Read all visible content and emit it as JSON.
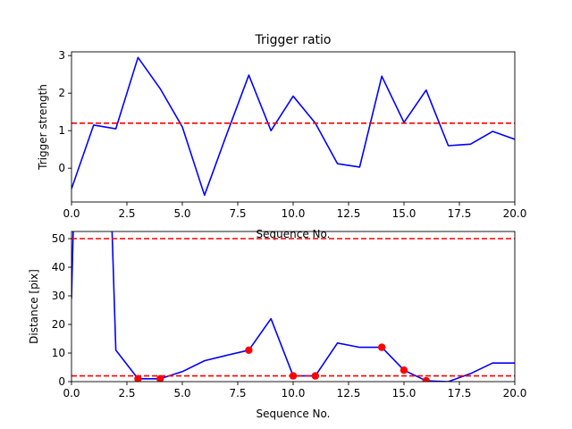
{
  "chart_data": [
    {
      "type": "line",
      "title": "Trigger ratio",
      "xlabel": "Sequence No.",
      "ylabel": "Trigger strength",
      "xlim": [
        0,
        20
      ],
      "ylim": [
        -0.9,
        3.1
      ],
      "xticks": [
        0,
        2.5,
        5,
        7.5,
        10,
        12.5,
        15,
        17.5,
        20
      ],
      "xtick_labels": [
        "0.0",
        "2.5",
        "5.0",
        "7.5",
        "10.0",
        "12.5",
        "15.0",
        "17.5",
        "20.0"
      ],
      "yticks": [
        0,
        1,
        2,
        3
      ],
      "ytick_labels": [
        "0",
        "1",
        "2",
        "3"
      ],
      "series": [
        {
          "color": "#0000ff",
          "x": [
            0,
            1,
            2,
            3,
            4,
            5,
            6,
            7,
            8,
            9,
            10,
            11,
            12,
            13,
            14,
            15,
            16,
            17,
            18,
            19,
            20
          ],
          "y": [
            -0.55,
            1.15,
            1.05,
            2.95,
            2.12,
            1.1,
            -0.72,
            0.9,
            2.48,
            1.0,
            1.92,
            1.2,
            0.12,
            0.03,
            2.45,
            1.22,
            2.08,
            0.6,
            0.64,
            0.98,
            0.77
          ]
        }
      ],
      "hlines": [
        {
          "y": 1.2,
          "color": "#ff0000",
          "style": "dashed"
        }
      ]
    },
    {
      "type": "line",
      "title": "",
      "xlabel": "Sequence No.",
      "ylabel": "Distance [pix]",
      "xlim": [
        0,
        20
      ],
      "ylim": [
        0,
        52.5
      ],
      "xticks": [
        0,
        2.5,
        5,
        7.5,
        10,
        12.5,
        15,
        17.5,
        20
      ],
      "xtick_labels": [
        "0.0",
        "2.5",
        "5.0",
        "7.5",
        "10.0",
        "12.5",
        "15.0",
        "17.5",
        "20.0"
      ],
      "yticks": [
        0,
        10,
        20,
        30,
        40,
        50
      ],
      "ytick_labels": [
        "0",
        "10",
        "20",
        "30",
        "40",
        "50"
      ],
      "series": [
        {
          "color": "#0000ff",
          "x": [
            0,
            0.1,
            1.8,
            2,
            3,
            4,
            5,
            6,
            7,
            8,
            9,
            10,
            11,
            12,
            13,
            14,
            15,
            16,
            17,
            18,
            19,
            20
          ],
          "y": [
            29,
            60,
            60,
            11,
            1,
            1,
            3.5,
            7.3,
            9.2,
            11,
            22,
            2,
            2,
            13.5,
            12,
            12,
            4,
            0.3,
            0,
            2.8,
            6.5,
            6.5
          ]
        }
      ],
      "markers": {
        "color": "#ff0000",
        "x": [
          3,
          4,
          8,
          10,
          11,
          14,
          15,
          16
        ],
        "y": [
          1,
          1,
          11,
          2,
          2,
          12,
          4,
          0.3
        ]
      },
      "hlines": [
        {
          "y": 50,
          "color": "#ff0000",
          "style": "dashed"
        },
        {
          "y": 2,
          "color": "#ff0000",
          "style": "dashed"
        }
      ]
    }
  ]
}
